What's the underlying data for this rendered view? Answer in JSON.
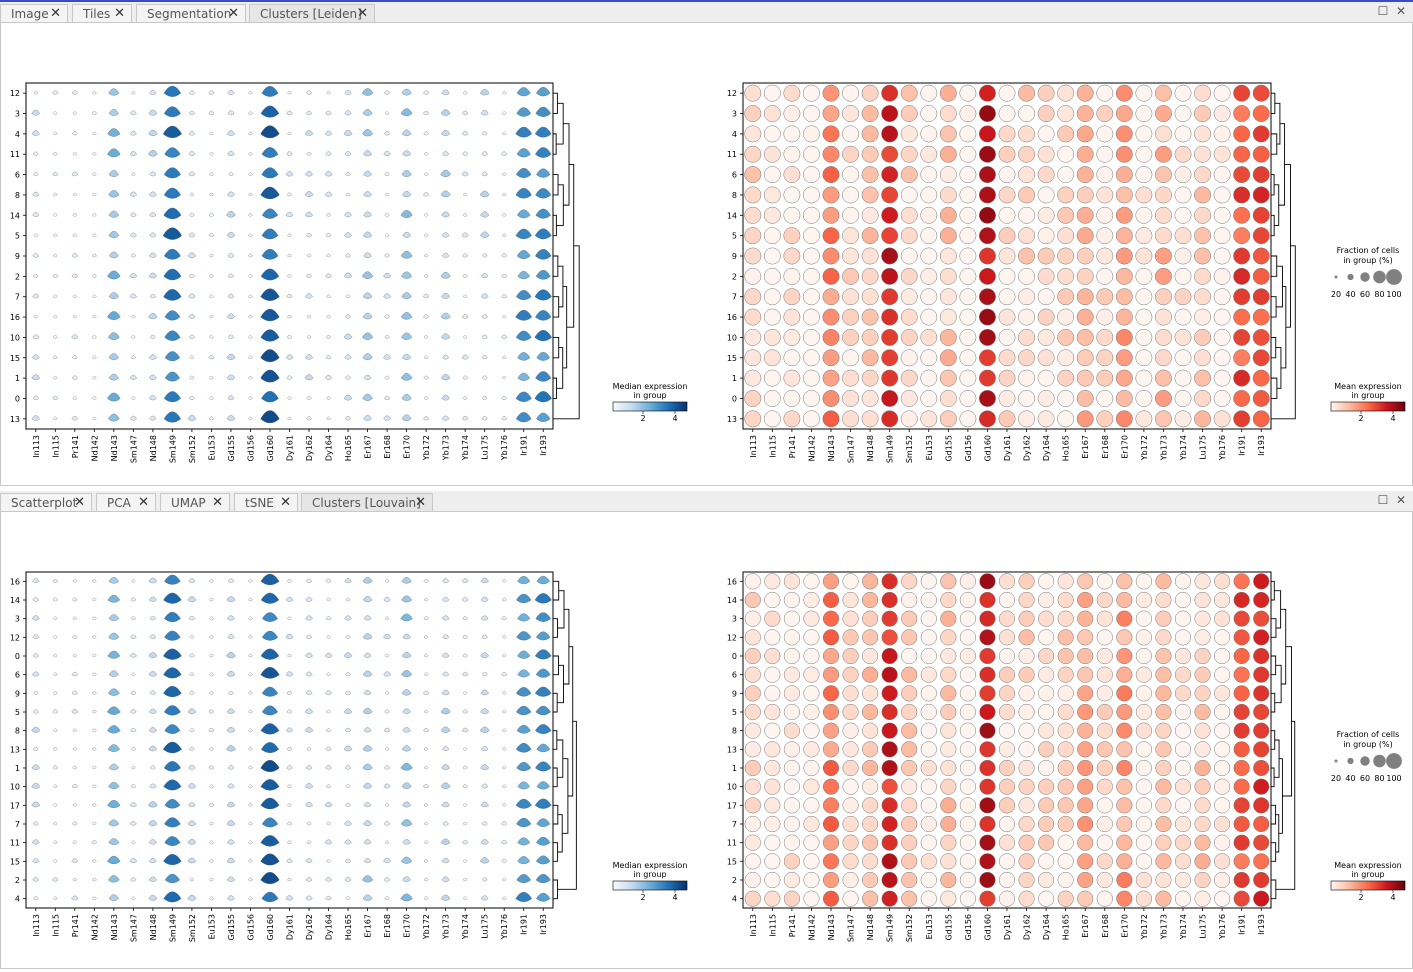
{
  "markers": [
    "In113",
    "In115",
    "Pr141",
    "Nd142",
    "Nd143",
    "Sm147",
    "Nd148",
    "Sm149",
    "Sm152",
    "Eu153",
    "Gd155",
    "Gd156",
    "Gd160",
    "Dy161",
    "Dy162",
    "Dy164",
    "Ho165",
    "Er167",
    "Er168",
    "Er170",
    "Yb172",
    "Yb173",
    "Yb174",
    "Lu175",
    "Yb176",
    "Ir191",
    "Ir193"
  ],
  "panes": [
    {
      "tabs": [
        {
          "label": "Image",
          "active": false
        },
        {
          "label": "Tiles",
          "active": false
        },
        {
          "label": "Segmentation",
          "active": false
        },
        {
          "label": "Clusters [Leiden]",
          "active": true
        }
      ],
      "clusters": [
        "12",
        "3",
        "4",
        "11",
        "6",
        "8",
        "14",
        "5",
        "9",
        "2",
        "7",
        "16",
        "10",
        "15",
        "1",
        "0",
        "13"
      ]
    },
    {
      "tabs": [
        {
          "label": "Scatterplot",
          "active": false
        },
        {
          "label": "PCA",
          "active": false
        },
        {
          "label": "UMAP",
          "active": false
        },
        {
          "label": "tSNE",
          "active": false
        },
        {
          "label": "Clusters [Louvain]",
          "active": true
        }
      ],
      "clusters": [
        "16",
        "14",
        "3",
        "12",
        "0",
        "6",
        "9",
        "5",
        "8",
        "13",
        "1",
        "10",
        "17",
        "7",
        "11",
        "15",
        "2",
        "4"
      ]
    }
  ],
  "legends": {
    "violin_title": [
      "Median expression",
      "in group"
    ],
    "violin_ticks": [
      "2",
      "4"
    ],
    "violin_colors": [
      "#f7fbff",
      "#08306b"
    ],
    "dot_size_title": [
      "Fraction of cells",
      "in group (%)"
    ],
    "dot_size_ticks": [
      "20",
      "40",
      "60",
      "80",
      "100"
    ],
    "dot_color_title": [
      "Mean expression",
      "in group"
    ],
    "dot_color_ticks": [
      "2",
      "4"
    ],
    "dot_colors": [
      "#fff5f0",
      "#67000d"
    ]
  },
  "chart_data": [
    {
      "type": "violin",
      "pane": 0,
      "clusters": [
        "12",
        "3",
        "4",
        "11",
        "6",
        "8",
        "14",
        "5",
        "9",
        "2",
        "7",
        "16",
        "10",
        "15",
        "1",
        "0",
        "13"
      ],
      "markers": [
        "In113",
        "In115",
        "Pr141",
        "Nd142",
        "Nd143",
        "Sm147",
        "Nd148",
        "Sm149",
        "Sm152",
        "Eu153",
        "Gd155",
        "Gd156",
        "Gd160",
        "Dy161",
        "Dy162",
        "Dy164",
        "Ho165",
        "Er167",
        "Er168",
        "Er170",
        "Yb172",
        "Yb173",
        "Yb174",
        "Lu175",
        "Yb176",
        "Ir191",
        "Ir193"
      ],
      "value_scale": "median expression",
      "legend": "right"
    },
    {
      "type": "dot",
      "pane": 0,
      "clusters": [
        "12",
        "3",
        "4",
        "11",
        "6",
        "8",
        "14",
        "5",
        "9",
        "2",
        "7",
        "16",
        "10",
        "15",
        "1",
        "0",
        "13"
      ],
      "markers": [
        "In113",
        "In115",
        "Pr141",
        "Nd142",
        "Nd143",
        "Sm147",
        "Nd148",
        "Sm149",
        "Sm152",
        "Eu153",
        "Gd155",
        "Gd156",
        "Gd160",
        "Dy161",
        "Dy162",
        "Dy164",
        "Ho165",
        "Er167",
        "Er168",
        "Er170",
        "Yb172",
        "Yb173",
        "Yb174",
        "Lu175",
        "Yb176",
        "Ir191",
        "Ir193"
      ],
      "size_scale": "fraction of cells (%)",
      "color_scale": "mean expression",
      "legend": "right"
    },
    {
      "type": "violin",
      "pane": 1,
      "clusters": [
        "16",
        "14",
        "3",
        "12",
        "0",
        "6",
        "9",
        "5",
        "8",
        "13",
        "1",
        "10",
        "17",
        "7",
        "11",
        "15",
        "2",
        "4"
      ],
      "markers": [
        "In113",
        "In115",
        "Pr141",
        "Nd142",
        "Nd143",
        "Sm147",
        "Nd148",
        "Sm149",
        "Sm152",
        "Eu153",
        "Gd155",
        "Gd156",
        "Gd160",
        "Dy161",
        "Dy162",
        "Dy164",
        "Ho165",
        "Er167",
        "Er168",
        "Er170",
        "Yb172",
        "Yb173",
        "Yb174",
        "Lu175",
        "Yb176",
        "Ir191",
        "Ir193"
      ],
      "value_scale": "median expression",
      "legend": "right"
    },
    {
      "type": "dot",
      "pane": 1,
      "clusters": [
        "16",
        "14",
        "3",
        "12",
        "0",
        "6",
        "9",
        "5",
        "8",
        "13",
        "1",
        "10",
        "17",
        "7",
        "11",
        "15",
        "2",
        "4"
      ],
      "markers": [
        "In113",
        "In115",
        "Pr141",
        "Nd142",
        "Nd143",
        "Sm147",
        "Nd148",
        "Sm149",
        "Sm152",
        "Eu153",
        "Gd155",
        "Gd156",
        "Gd160",
        "Dy161",
        "Dy162",
        "Dy164",
        "Ho165",
        "Er167",
        "Er168",
        "Er170",
        "Yb172",
        "Yb173",
        "Yb174",
        "Lu175",
        "Yb176",
        "Ir191",
        "Ir193"
      ],
      "size_scale": "fraction of cells (%)",
      "color_scale": "mean expression",
      "legend": "right"
    }
  ]
}
